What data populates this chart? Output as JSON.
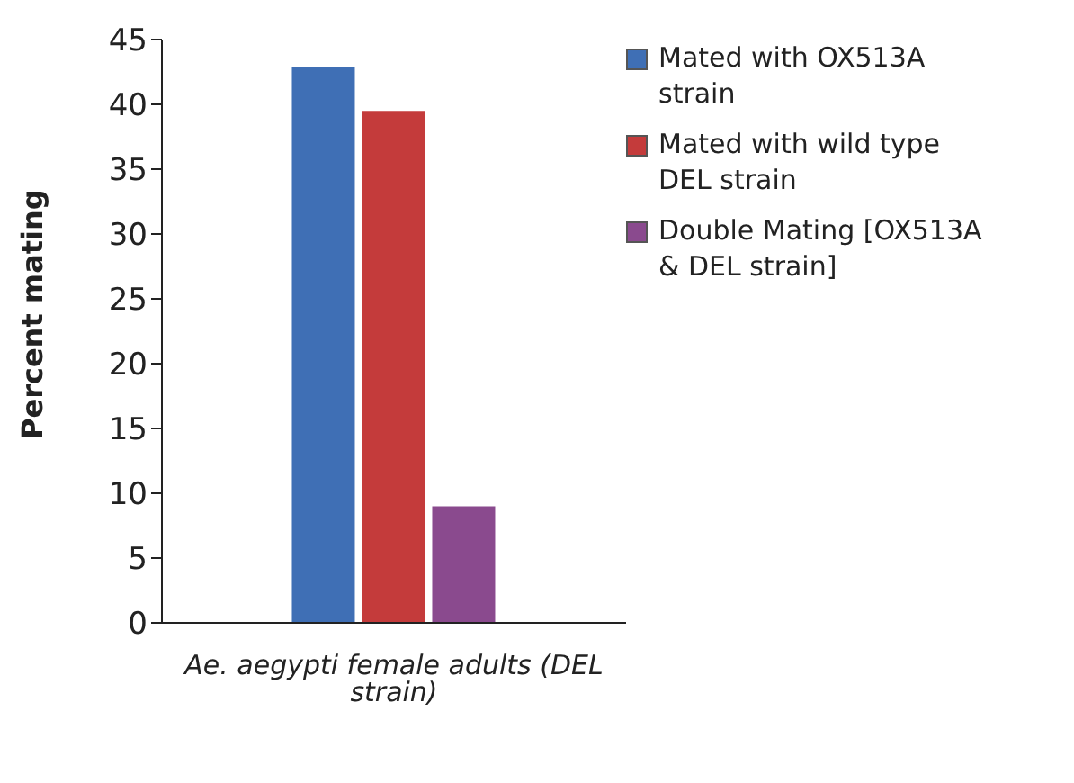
{
  "chart_data": {
    "type": "bar",
    "ylabel": "Percent mating",
    "categories": [
      "Ae. aegypti female adults (DEL strain)"
    ],
    "series": [
      {
        "name": "Mated with OX513A strain",
        "color": "#3f6fb5",
        "values": [
          42.9
        ]
      },
      {
        "name": "Mated with wild type DEL strain",
        "color": "#c43b3b",
        "values": [
          39.5
        ]
      },
      {
        "name": "Double Mating [OX513A & DEL strain]",
        "color": "#8a4a8e",
        "values": [
          9.0
        ]
      }
    ],
    "ylim": [
      0,
      45
    ],
    "yticks": [
      0,
      5,
      10,
      15,
      20,
      25,
      30,
      35,
      40,
      45
    ],
    "grid": false,
    "legend": "top right"
  }
}
